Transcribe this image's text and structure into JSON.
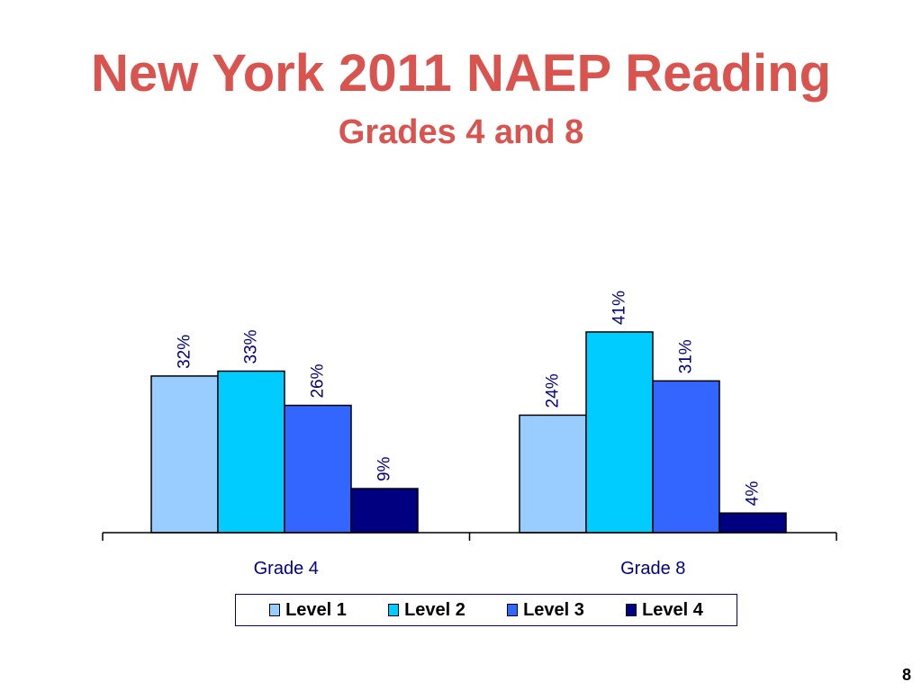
{
  "slide": {
    "title": "New York 2011 NAEP Reading",
    "subtitle": "Grades 4 and 8",
    "page_number": "8"
  },
  "chart_data": {
    "type": "bar",
    "categories": [
      "Grade 4",
      "Grade 8"
    ],
    "series": [
      {
        "name": "Level 1",
        "values": [
          32,
          24
        ],
        "labels": [
          "32%",
          "24%"
        ],
        "color": "#99ccff"
      },
      {
        "name": "Level 2",
        "values": [
          33,
          41
        ],
        "labels": [
          "33%",
          "41%"
        ],
        "color": "#00ccff"
      },
      {
        "name": "Level 3",
        "values": [
          26,
          31
        ],
        "labels": [
          "26%",
          "31%"
        ],
        "color": "#3366ff"
      },
      {
        "name": "Level 4",
        "values": [
          9,
          4
        ],
        "labels": [
          "9%",
          "4%"
        ],
        "color": "#000080"
      }
    ],
    "ylim": [
      0,
      50
    ],
    "grid": false,
    "legend_position": "bottom",
    "title": "",
    "xlabel": "",
    "ylabel": "",
    "label_color": "#000080",
    "tick_label_color": "#00008b"
  }
}
